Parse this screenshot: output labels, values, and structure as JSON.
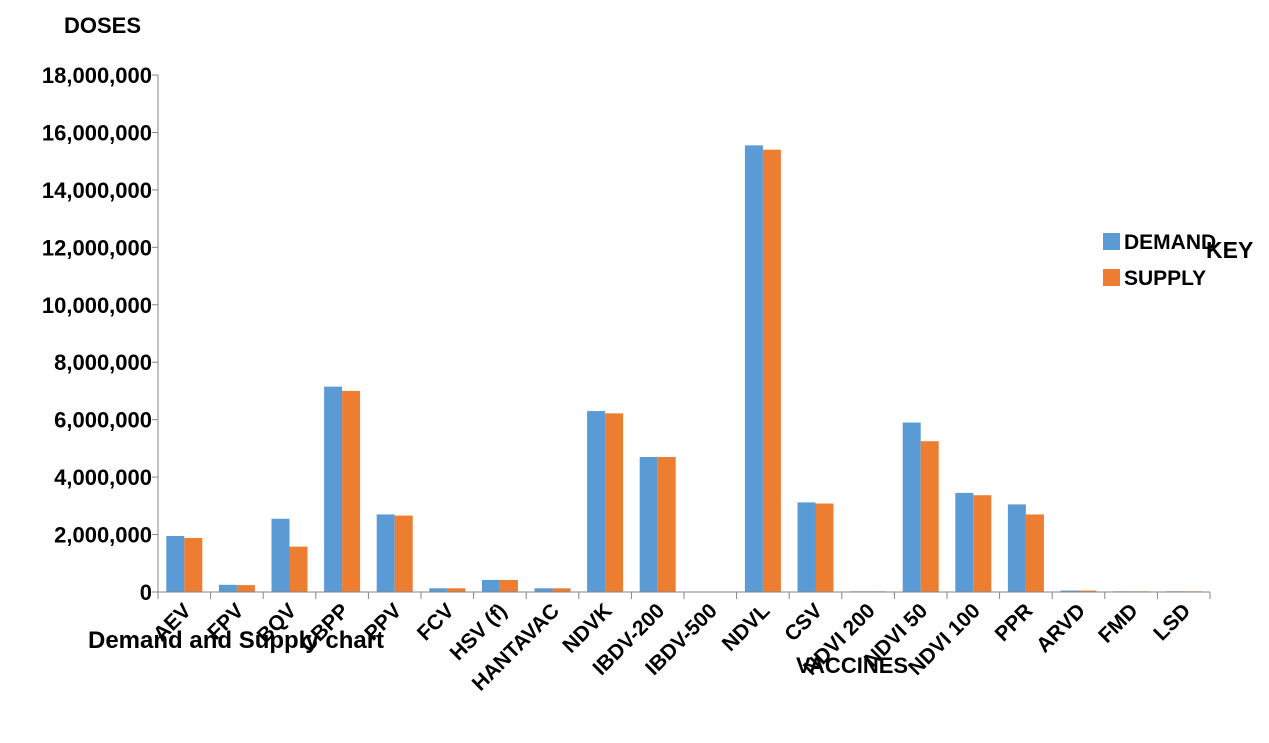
{
  "chart_data": {
    "type": "bar",
    "title": "Demand and Supply chart",
    "ylabel": "DOSES",
    "xlabel": "VACCINES",
    "legend_title": "KEY",
    "legend_position": "right",
    "ylim": [
      0,
      18000000
    ],
    "ytick_step": 2000000,
    "yticks": [
      "0",
      "2,000,000",
      "4,000,000",
      "6,000,000",
      "8,000,000",
      "10,000,000",
      "12,000,000",
      "14,000,000",
      "16,000,000",
      "18,000,000"
    ],
    "grid": false,
    "categories": [
      "AEV",
      "FPV",
      "BQV",
      "CBPP",
      "PPV",
      "FCV",
      "HSV (f)",
      "HANTAVAC",
      "NDVK",
      "IBDV-200",
      "IBDV-500",
      "NDVL",
      "CSV",
      "NDVI 200",
      "NDVI 50",
      "NDVI 100",
      "PPR",
      "ARVD",
      "FMD",
      "LSD"
    ],
    "series": [
      {
        "name": "DEMAND",
        "color": "#5b9bd5",
        "values": [
          1950000,
          250000,
          2550000,
          7150000,
          2700000,
          130000,
          420000,
          130000,
          6300000,
          4700000,
          0,
          15550000,
          3120000,
          25000,
          5900000,
          3450000,
          3050000,
          50000,
          25000,
          25000
        ]
      },
      {
        "name": "SUPPLY",
        "color": "#ed7d31",
        "values": [
          1880000,
          240000,
          1580000,
          7000000,
          2660000,
          130000,
          420000,
          130000,
          6220000,
          4700000,
          0,
          15400000,
          3080000,
          25000,
          5250000,
          3370000,
          2700000,
          50000,
          25000,
          25000
        ]
      }
    ]
  }
}
